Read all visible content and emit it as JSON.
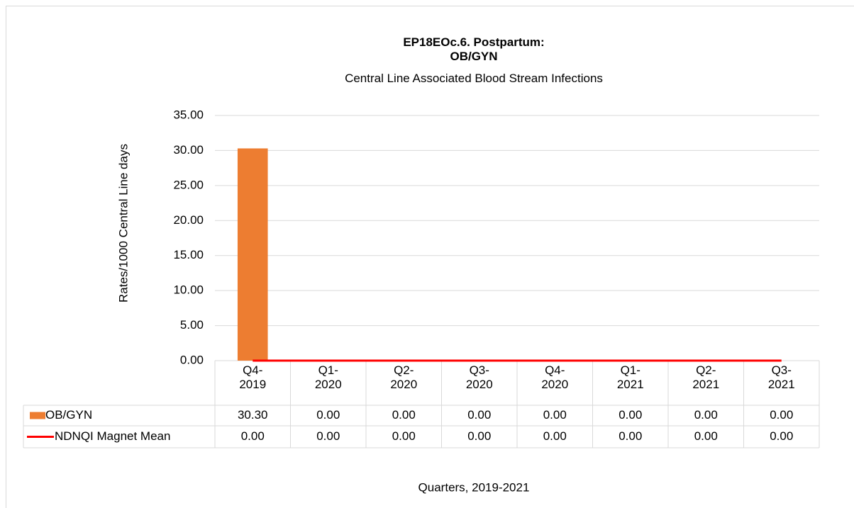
{
  "chart_data": {
    "type": "bar",
    "title": "EP18EOc.6. Postpartum:\nOB/GYN",
    "subtitle": "Central Line Associated Blood Stream Infections",
    "y_label": "Rates/1000 Central Line days",
    "x_label": "Quarters, 2019-2021",
    "categories": [
      "Q4-\n2019",
      "Q1-\n2020",
      "Q2-\n2020",
      "Q3-\n2020",
      "Q4-\n2020",
      "Q1-\n2021",
      "Q2-\n2021",
      "Q3-\n2021"
    ],
    "series": [
      {
        "name": "OB/GYN",
        "type": "bar",
        "color": "#ed7d31",
        "values": [
          30.3,
          0,
          0,
          0,
          0,
          0,
          0,
          0
        ],
        "value_labels": [
          "30.30",
          "0.00",
          "0.00",
          "0.00",
          "0.00",
          "0.00",
          "0.00",
          "0.00"
        ]
      },
      {
        "name": "NDNQI Magnet Mean",
        "type": "line",
        "color": "#ff0000",
        "values": [
          0,
          0,
          0,
          0,
          0,
          0,
          0,
          0
        ],
        "value_labels": [
          "0.00",
          "0.00",
          "0.00",
          "0.00",
          "0.00",
          "0.00",
          "0.00",
          "0.00"
        ]
      }
    ],
    "ylim": [
      0,
      35
    ],
    "yticks": [
      {
        "value": 0,
        "label": "0.00"
      },
      {
        "value": 5,
        "label": "5.00"
      },
      {
        "value": 10,
        "label": "10.00"
      },
      {
        "value": 15,
        "label": "15.00"
      },
      {
        "value": 20,
        "label": "20.00"
      },
      {
        "value": 25,
        "label": "25.00"
      },
      {
        "value": 30,
        "label": "30.00"
      },
      {
        "value": 35,
        "label": "35.00"
      }
    ],
    "grid": true
  }
}
